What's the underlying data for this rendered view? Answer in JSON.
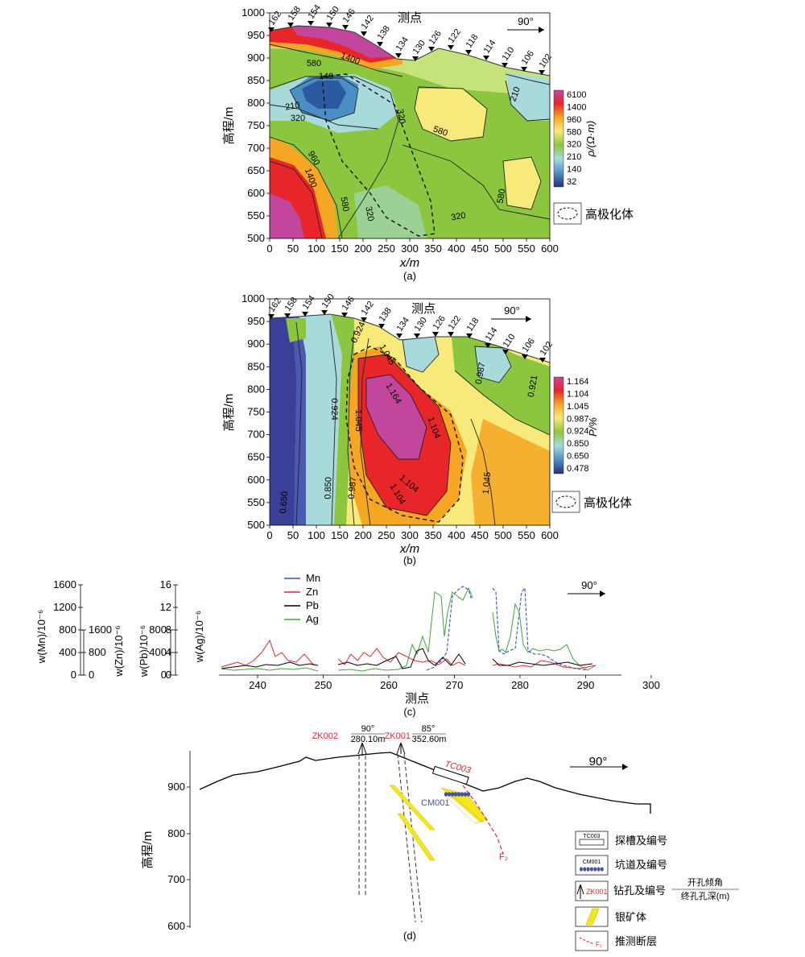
{
  "panel_a": {
    "caption": "(a)",
    "section_title": "测点",
    "azimuth": "90°",
    "y_label": "高程/m",
    "x_label": "x/m",
    "x_ticks": [
      "0",
      "50",
      "100",
      "150",
      "200",
      "250",
      "300",
      "350",
      "400",
      "450",
      "500",
      "550",
      "600"
    ],
    "y_ticks": [
      "500",
      "550",
      "600",
      "650",
      "700",
      "750",
      "800",
      "850",
      "900",
      "950",
      "1000"
    ],
    "stations": [
      "162",
      "158",
      "154",
      "150",
      "146",
      "142",
      "138",
      "134",
      "130",
      "126",
      "122",
      "118",
      "114",
      "110",
      "106",
      "102"
    ],
    "colorbar_label": "ρ/(Ω·m)",
    "colorbar_values": [
      "6100",
      "1400",
      "960",
      "580",
      "320",
      "210",
      "140",
      "32"
    ],
    "contours": [
      "1400",
      "580",
      "140",
      "210",
      "320",
      "320",
      "580",
      "960",
      "1400",
      "580",
      "320",
      "320",
      "580",
      "210"
    ],
    "legend": "高极化体",
    "colors": {
      "c6100": "#c2479c",
      "c1400": "#e8262a",
      "c960": "#f5a623",
      "c580": "#f7ea7a",
      "c320": "#8cc63f",
      "c210": "#a8dadc",
      "c140": "#4a8ec4",
      "c32": "#2b2f7a"
    }
  },
  "panel_b": {
    "caption": "(b)",
    "section_title": "测点",
    "azimuth": "90°",
    "y_label": "高程/m",
    "x_label": "x/m",
    "x_ticks": [
      "0",
      "50",
      "100",
      "150",
      "200",
      "250",
      "300",
      "350",
      "400",
      "450",
      "500",
      "550",
      "600"
    ],
    "y_ticks": [
      "500",
      "550",
      "600",
      "650",
      "700",
      "750",
      "800",
      "850",
      "900",
      "950",
      "1000"
    ],
    "stations": [
      "162",
      "158",
      "154",
      "150",
      "146",
      "142",
      "138",
      "134",
      "130",
      "126",
      "122",
      "118",
      "114",
      "110",
      "106",
      "102"
    ],
    "colorbar_label": "P/%",
    "colorbar_values": [
      "1.164",
      "1.104",
      "1.045",
      "0.987",
      "0.924",
      "0.850",
      "0.650",
      "0.478"
    ],
    "contours": [
      "0.924",
      "1.045",
      "1.164",
      "0.924",
      "1.045",
      "1.104",
      "0.987",
      "0.921",
      "0.650",
      "0.850",
      "0.987",
      "1.104",
      "1.045",
      "1.104"
    ],
    "legend": "高极化体"
  },
  "panel_c": {
    "caption": "(c)",
    "azimuth": "90°",
    "x_label": "测点",
    "legend": [
      {
        "name": "Mn",
        "color": "#3a4fc9"
      },
      {
        "name": "Zn",
        "color": "#e8262a"
      },
      {
        "name": "Pb",
        "color": "#000000"
      },
      {
        "name": "Ag",
        "color": "#3aa83a"
      }
    ],
    "axes": [
      {
        "label": "w(Mn)/10⁻⁶",
        "ticks": [
          "1600",
          "1200",
          "800",
          "400",
          "0"
        ]
      },
      {
        "label": "w(Zn)/10⁻⁶",
        "ticks": [
          "1600",
          "800",
          "0"
        ]
      },
      {
        "label": "w(Pb)/10⁻⁶",
        "ticks": [
          "800",
          "400",
          "0"
        ]
      },
      {
        "label": "w(Ag)/10⁻⁶",
        "ticks": [
          "16",
          "12",
          "8",
          "4",
          "0"
        ]
      }
    ],
    "x_ticks": [
      "240",
      "250",
      "260",
      "270",
      "280",
      "290",
      "300"
    ]
  },
  "panel_d": {
    "caption": "(d)",
    "azimuth": "90°",
    "y_label": "高程/m",
    "y_ticks": [
      "900",
      "800",
      "700",
      "600"
    ],
    "boreholes": [
      {
        "id": "ZK002",
        "angle": "90°",
        "depth": "280.10m"
      },
      {
        "id": "ZK001",
        "angle": "85°",
        "depth": "352.60m"
      }
    ],
    "trench_id": "TC003",
    "adit_id": "CM001",
    "fault_id": "F₂",
    "legend": [
      {
        "icon": "TC003",
        "text": "探槽及编号"
      },
      {
        "icon": "CM001",
        "text": "坑道及编号"
      },
      {
        "icon": "ZK001",
        "text": "钻孔及编号",
        "fraction_top": "开孔倾角",
        "fraction_bottom": "终孔孔深(m)"
      },
      {
        "icon": "",
        "text": "银矿体"
      },
      {
        "icon": "F₂",
        "text": "推测断层"
      }
    ]
  }
}
